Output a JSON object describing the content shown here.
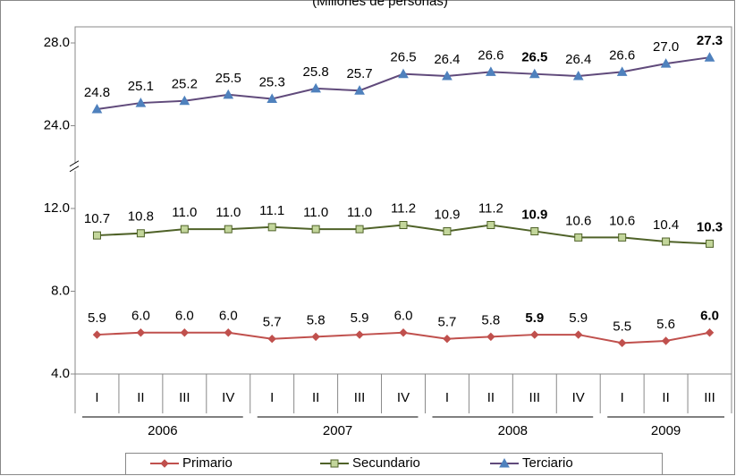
{
  "chart_data": {
    "type": "line",
    "subtitle": "(Millones de personas)",
    "categories": [
      "I",
      "II",
      "III",
      "IV",
      "I",
      "II",
      "III",
      "IV",
      "I",
      "II",
      "III",
      "IV",
      "I",
      "II",
      "III"
    ],
    "category_groups": [
      {
        "label": "2006",
        "count": 4
      },
      {
        "label": "2007",
        "count": 4
      },
      {
        "label": "2008",
        "count": 4
      },
      {
        "label": "2009",
        "count": 3
      }
    ],
    "series": [
      {
        "name": "Primario",
        "color": "#c0504d",
        "marker": "diamond",
        "marker_fill": "#c0504d",
        "values": [
          5.9,
          6.0,
          6.0,
          6.0,
          5.7,
          5.8,
          5.9,
          6.0,
          5.7,
          5.8,
          5.9,
          5.9,
          5.5,
          5.6,
          6.0
        ],
        "value_labels": [
          "5.9",
          "6.0",
          "6.0",
          "6.0",
          "5.7",
          "5.8",
          "5.9",
          "6.0",
          "5.7",
          "5.8",
          "5.9",
          "5.9",
          "5.5",
          "5.6",
          "6.0"
        ]
      },
      {
        "name": "Secundario",
        "color": "#4f6228",
        "marker": "square",
        "marker_fill": "#c3d69b",
        "values": [
          10.7,
          10.8,
          11.0,
          11.0,
          11.1,
          11.0,
          11.0,
          11.2,
          10.9,
          11.2,
          10.9,
          10.6,
          10.6,
          10.4,
          10.3
        ],
        "value_labels": [
          "10.7",
          "10.8",
          "11.0",
          "11.0",
          "11.1",
          "11.0",
          "11.0",
          "11.2",
          "10.9",
          "11.2",
          "10.9",
          "10.6",
          "10.6",
          "10.4",
          "10.3"
        ]
      },
      {
        "name": "Terciario",
        "color": "#604a7b",
        "marker": "triangle",
        "marker_fill": "#4f81bd",
        "values": [
          24.8,
          25.1,
          25.2,
          25.5,
          25.3,
          25.8,
          25.7,
          26.5,
          26.4,
          26.6,
          26.5,
          26.4,
          26.6,
          27.0,
          27.3
        ],
        "value_labels": [
          "24.8",
          "25.1",
          "25.2",
          "25.5",
          "25.3",
          "25.8",
          "25.7",
          "26.5",
          "26.4",
          "26.6",
          "26.5",
          "26.4",
          "26.6",
          "27.0",
          "27.3"
        ]
      }
    ],
    "bold_label_indices": [
      10,
      14
    ],
    "ylim": [
      4,
      28
    ],
    "y_break": [
      12,
      24
    ],
    "yticks": [
      {
        "value": 4,
        "label": "4.0"
      },
      {
        "value": 8,
        "label": "8.0"
      },
      {
        "value": 12,
        "label": "12.0"
      },
      {
        "value": 24,
        "label": "24.0"
      },
      {
        "value": 28,
        "label": "28.0"
      }
    ],
    "legend": "bottom"
  }
}
